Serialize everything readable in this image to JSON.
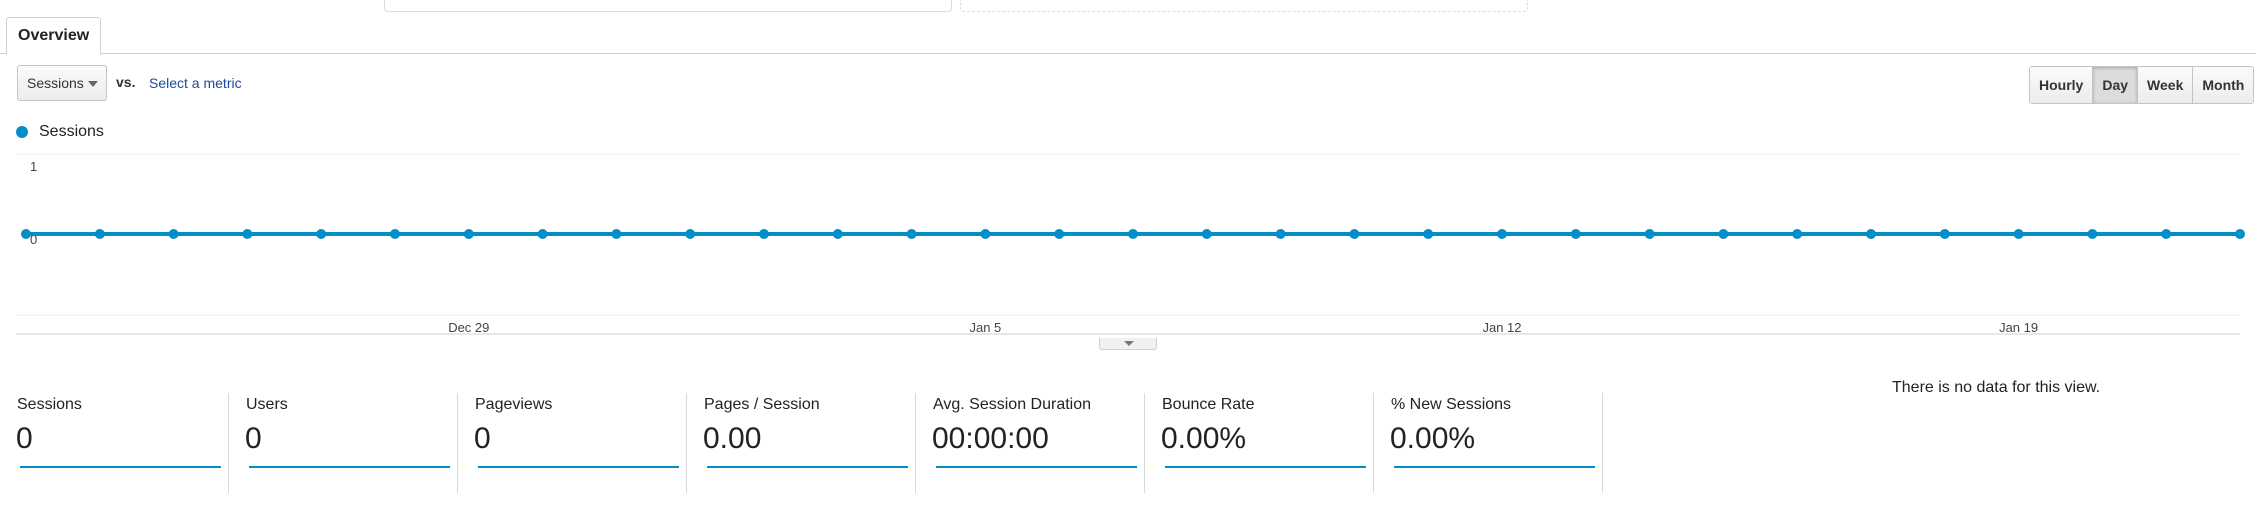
{
  "tabs": {
    "overview_label": "Overview"
  },
  "controls": {
    "metric_selected": "Sessions",
    "vs_label": "vs.",
    "select_metric_label": "Select a metric",
    "granularity": [
      "Hourly",
      "Day",
      "Week",
      "Month"
    ],
    "granularity_active": "Day"
  },
  "colors": {
    "series": "#058dc7",
    "accent_link": "#1a4a9a"
  },
  "chart_data": {
    "type": "line",
    "series": [
      {
        "name": "Sessions",
        "values": [
          0,
          0,
          0,
          0,
          0,
          0,
          0,
          0,
          0,
          0,
          0,
          0,
          0,
          0,
          0,
          0,
          0,
          0,
          0,
          0,
          0,
          0,
          0,
          0,
          0,
          0,
          0,
          0,
          0,
          0,
          0
        ]
      }
    ],
    "x_ticks": [
      "Dec 29",
      "Jan 5",
      "Jan 12",
      "Jan 19"
    ],
    "x_tick_indices": [
      6,
      13,
      20,
      27
    ],
    "y_ticks": [
      "1",
      "0"
    ],
    "ylim": [
      0,
      1
    ],
    "grid": true
  },
  "scorecards": [
    {
      "label": "Sessions",
      "value": "0"
    },
    {
      "label": "Users",
      "value": "0"
    },
    {
      "label": "Pageviews",
      "value": "0"
    },
    {
      "label": "Pages / Session",
      "value": "0.00"
    },
    {
      "label": "Avg. Session Duration",
      "value": "00:00:00"
    },
    {
      "label": "Bounce Rate",
      "value": "0.00%"
    },
    {
      "label": "% New Sessions",
      "value": "0.00%"
    }
  ],
  "no_data_message": "There is no data for this view."
}
